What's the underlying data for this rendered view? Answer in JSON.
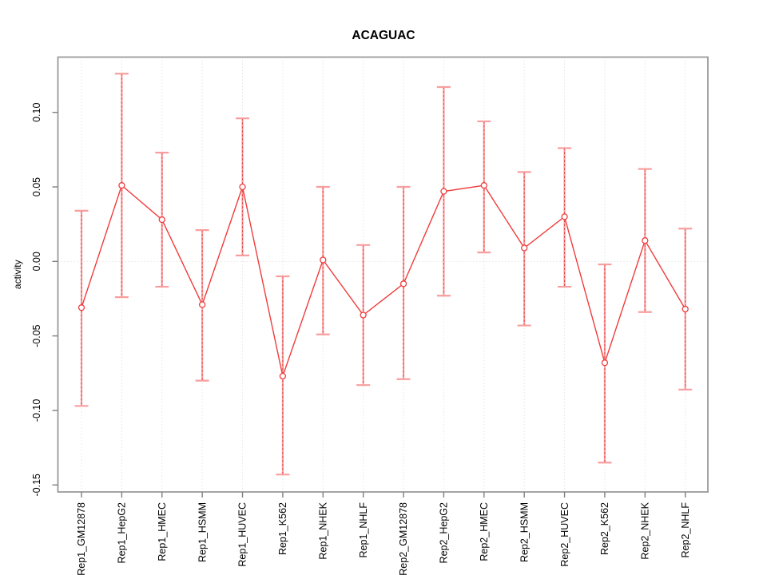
{
  "title": "ACAGUAC",
  "chart_data": {
    "type": "line",
    "title": "ACAGUAC",
    "xlabel": "",
    "ylabel": "activity",
    "legend": "none",
    "grid": {
      "vertical_per_category": true,
      "horizontal_zero_line": true,
      "style": "dotted"
    },
    "categories": [
      "Rep1_GM12878",
      "Rep1_HepG2",
      "Rep1_HMEC",
      "Rep1_HSMM",
      "Rep1_HUVEC",
      "Rep1_K562",
      "Rep1_NHEK",
      "Rep1_NHLF",
      "Rep2_GM12878",
      "Rep2_HepG2",
      "Rep2_HMEC",
      "Rep2_HSMM",
      "Rep2_HUVEC",
      "Rep2_K562",
      "Rep2_NHEK",
      "Rep2_NHLF"
    ],
    "series": [
      {
        "name": "activity",
        "marker": "open-circle",
        "values": [
          -0.031,
          0.051,
          0.028,
          -0.029,
          0.05,
          -0.077,
          0.001,
          -0.036,
          -0.015,
          0.047,
          0.051,
          0.009,
          0.03,
          -0.068,
          0.014,
          -0.032
        ],
        "lower": [
          -0.097,
          -0.024,
          -0.017,
          -0.08,
          0.004,
          -0.143,
          -0.049,
          -0.083,
          -0.079,
          -0.023,
          0.006,
          -0.043,
          -0.017,
          -0.135,
          -0.034,
          -0.086
        ],
        "upper": [
          0.034,
          0.126,
          0.073,
          0.021,
          0.096,
          -0.01,
          0.05,
          0.011,
          0.05,
          0.117,
          0.094,
          0.06,
          0.076,
          -0.002,
          0.062,
          0.022
        ]
      }
    ],
    "yticks": [
      0.1,
      0.05,
      0.0,
      -0.05,
      -0.1,
      -0.15
    ],
    "ylim": [
      -0.1547,
      0.1371
    ],
    "colors": {
      "point_line": "#f03c3c",
      "error_bar": "#f99e9e",
      "error_dash": "#e04848",
      "frame": "#9a9a9a",
      "tick": "#808080",
      "grid": "#d9d9d9",
      "text": "#000000"
    }
  }
}
